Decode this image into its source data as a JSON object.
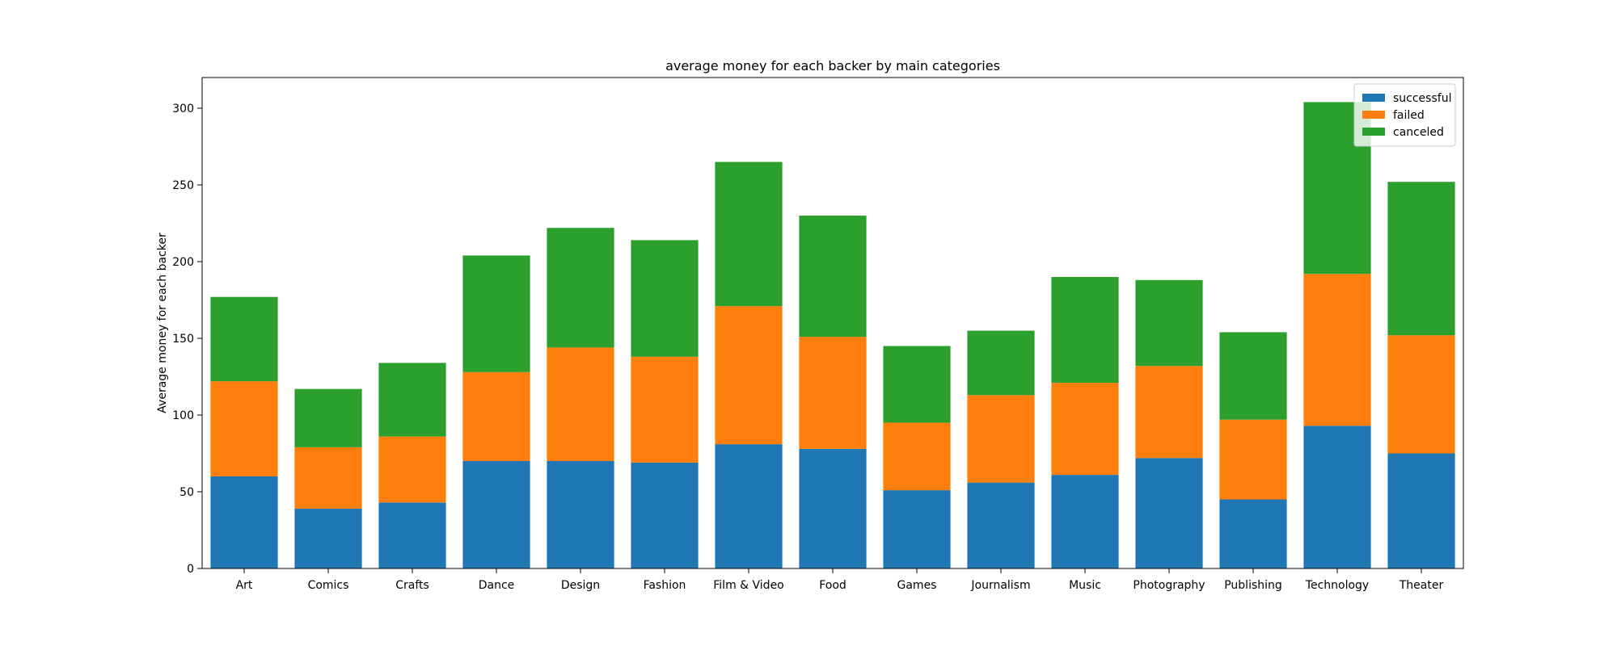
{
  "chart_data": {
    "type": "bar",
    "stacked": true,
    "title": "average money for each backer by main categories",
    "xlabel": "",
    "ylabel": "Average money for each backer",
    "ylim": [
      0,
      320
    ],
    "yticks": [
      0,
      50,
      100,
      150,
      200,
      250,
      300
    ],
    "categories": [
      "Art",
      "Comics",
      "Crafts",
      "Dance",
      "Design",
      "Fashion",
      "Film & Video",
      "Food",
      "Games",
      "Journalism",
      "Music",
      "Photography",
      "Publishing",
      "Technology",
      "Theater"
    ],
    "series": [
      {
        "name": "successful",
        "color": "#1f77b4",
        "values": [
          60,
          39,
          43,
          70,
          70,
          69,
          81,
          78,
          51,
          56,
          61,
          72,
          45,
          93,
          75
        ]
      },
      {
        "name": "failed",
        "color": "#ff7f0e",
        "values": [
          62,
          40,
          43,
          58,
          74,
          69,
          90,
          73,
          44,
          57,
          60,
          60,
          52,
          99,
          77
        ]
      },
      {
        "name": "canceled",
        "color": "#2ca02c",
        "values": [
          55,
          38,
          48,
          76,
          78,
          76,
          94,
          79,
          50,
          42,
          69,
          56,
          57,
          112,
          100
        ]
      }
    ],
    "legend_position": "top-right",
    "grid": false
  }
}
